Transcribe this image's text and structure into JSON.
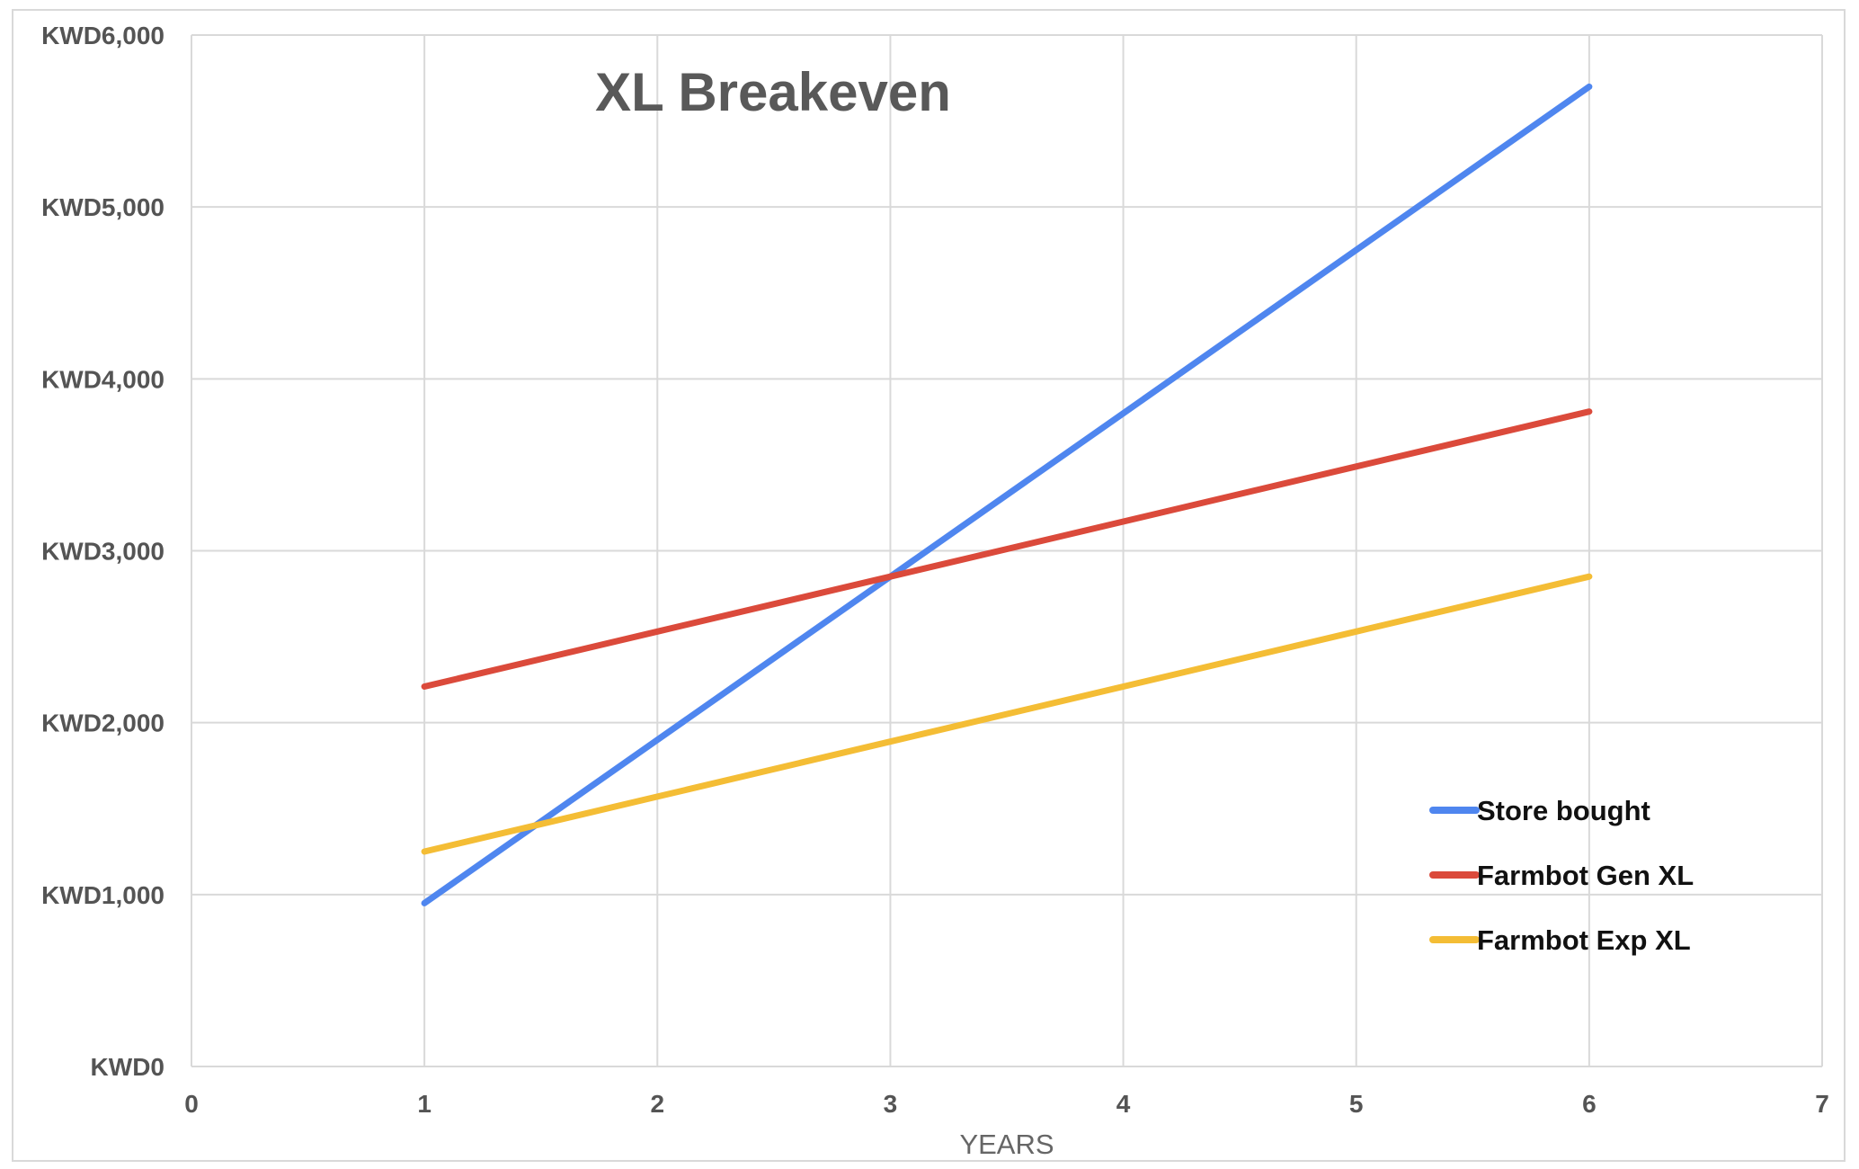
{
  "chart_data": {
    "type": "line",
    "title": "XL Breakeven",
    "xlabel": "YEARS",
    "ylabel": "",
    "xlim": [
      0,
      7
    ],
    "ylim": [
      0,
      6000
    ],
    "x_ticks": [
      "0",
      "1",
      "2",
      "3",
      "4",
      "5",
      "6",
      "7"
    ],
    "y_ticks": [
      "KWD0",
      "KWD1,000",
      "KWD2,000",
      "KWD3,000",
      "KWD4,000",
      "KWD5,000",
      "KWD6,000"
    ],
    "x": [
      1,
      2,
      3,
      4,
      5,
      6
    ],
    "grid": true,
    "legend_position": "bottom-right",
    "series": [
      {
        "name": "Store bought",
        "color": "#4f86ef",
        "values": [
          950,
          1900,
          2850,
          3800,
          4750,
          5700
        ]
      },
      {
        "name": "Farmbot Gen XL",
        "color": "#db4a3b",
        "values": [
          2210,
          2530,
          2850,
          3170,
          3490,
          3810
        ]
      },
      {
        "name": "Farmbot Exp XL",
        "color": "#f4bd35",
        "values": [
          1250,
          1570,
          1890,
          2210,
          2530,
          2850
        ]
      }
    ]
  }
}
